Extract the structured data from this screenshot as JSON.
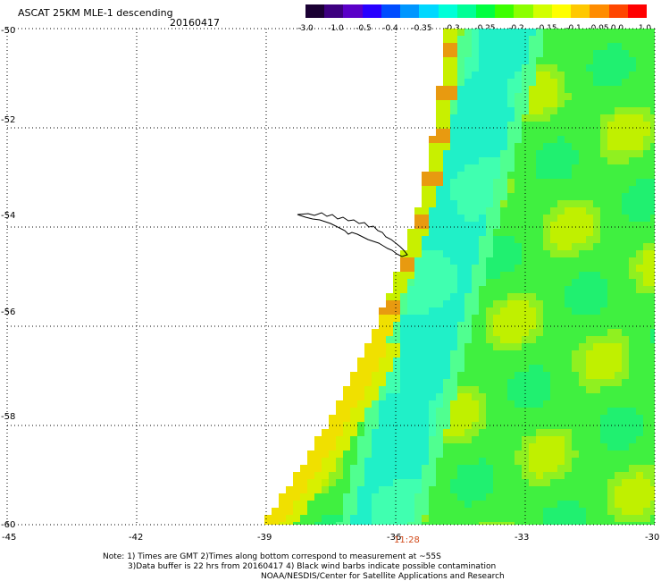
{
  "title": "ASCAT 25KM MLE-1 descending",
  "date": "20160417",
  "colorbar": {
    "tick_labels": [
      "-3.0",
      "-1.0",
      "-0.5",
      "-0.4",
      "-0.35",
      "-0.3",
      "-0.25",
      "-0.2",
      "-0.15",
      "-0.1",
      "-0.05",
      "0.0",
      "1.0"
    ],
    "colors": [
      "#1a0033",
      "#3d0080",
      "#5a00c8",
      "#2800ff",
      "#004cff",
      "#0096ff",
      "#00d8ff",
      "#00ffd8",
      "#00ff96",
      "#00ff40",
      "#3cff00",
      "#8cff00",
      "#d2ff00",
      "#ffff00",
      "#ffc800",
      "#ff8c00",
      "#ff4600",
      "#ff0000"
    ]
  },
  "map": {
    "lon_labels": [
      "-45",
      "-42",
      "-39",
      "-36",
      "-33",
      "-30"
    ],
    "lat_labels": [
      "-50",
      "-52",
      "-54",
      "-56",
      "-58",
      "-60"
    ],
    "lon_ticks": [
      -45,
      -42,
      -39,
      -36,
      -33,
      -30
    ],
    "lat_ticks": [
      -50,
      -52,
      -54,
      -56,
      -58,
      -60
    ],
    "lon_range": [
      -45,
      -30
    ],
    "lat_range": [
      -60,
      -50
    ],
    "time_label": "11:28"
  },
  "notes": {
    "line1": "Note: 1) Times are GMT 2)Times along bottom correspond to measurement at ~55S",
    "line2": "3)Data buffer is 22 hrs from 20160417 4) Black wind barbs indicate possible contamination",
    "line3": "NOAA/NESDIS/Center for Satellite Applications and Research"
  }
}
